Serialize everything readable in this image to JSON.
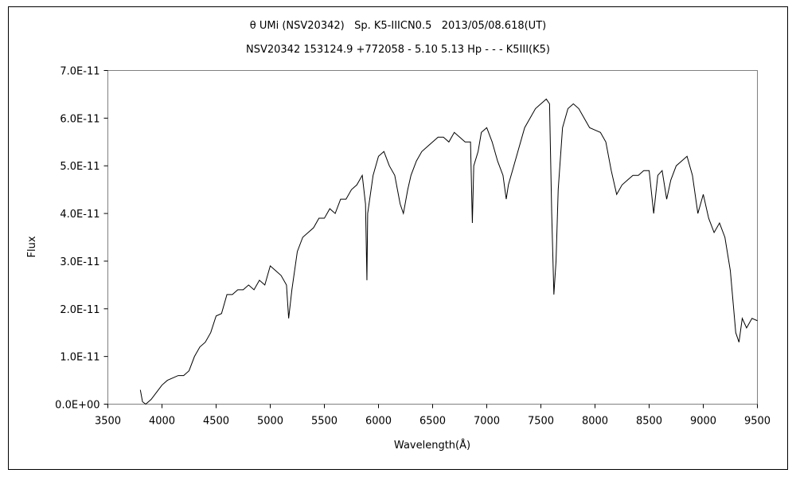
{
  "chart_data": {
    "type": "line",
    "title": "θ UMi (NSV20342)   Sp. K5-IIICN0.5   2013/05/08.618(UT)",
    "subtitle": "NSV20342 153124.9 +772058 - 5.10 5.13 Hp - - - K5III(K5)",
    "x_label": "Wavelength(Å)",
    "y_label": "Flux",
    "xlim": [
      3500,
      9500
    ],
    "xticks": [
      3500,
      4000,
      4500,
      5000,
      5500,
      6000,
      6500,
      7000,
      7500,
      8000,
      8500,
      9000,
      9500
    ],
    "ylim": [
      0,
      7e-11
    ],
    "yticks": [
      {
        "value": 0,
        "label": "0.0E+00"
      },
      {
        "value": 1e-11,
        "label": "1.0E-11"
      },
      {
        "value": 2e-11,
        "label": "2.0E-11"
      },
      {
        "value": 3e-11,
        "label": "3.0E-11"
      },
      {
        "value": 4e-11,
        "label": "4.0E-11"
      },
      {
        "value": 5e-11,
        "label": "5.0E-11"
      },
      {
        "value": 6e-11,
        "label": "6.0E-11"
      },
      {
        "value": 7e-11,
        "label": "7.0E-11"
      }
    ],
    "color": "#000000",
    "x": [
      3800,
      3820,
      3850,
      3900,
      3950,
      4000,
      4050,
      4100,
      4150,
      4200,
      4250,
      4300,
      4350,
      4400,
      4450,
      4500,
      4550,
      4600,
      4650,
      4700,
      4750,
      4800,
      4850,
      4900,
      4950,
      5000,
      5050,
      5100,
      5150,
      5170,
      5200,
      5250,
      5300,
      5350,
      5400,
      5450,
      5500,
      5550,
      5600,
      5650,
      5700,
      5750,
      5800,
      5850,
      5880,
      5893,
      5900,
      5950,
      6000,
      6050,
      6100,
      6150,
      6200,
      6230,
      6270,
      6300,
      6350,
      6400,
      6450,
      6500,
      6550,
      6600,
      6650,
      6700,
      6750,
      6800,
      6850,
      6867,
      6880,
      6920,
      6950,
      7000,
      7050,
      7100,
      7150,
      7180,
      7200,
      7250,
      7300,
      7350,
      7400,
      7450,
      7500,
      7550,
      7580,
      7600,
      7620,
      7640,
      7660,
      7700,
      7750,
      7800,
      7850,
      7900,
      7950,
      8000,
      8050,
      8100,
      8150,
      8200,
      8250,
      8300,
      8350,
      8400,
      8450,
      8500,
      8542,
      8580,
      8620,
      8662,
      8700,
      8750,
      8800,
      8850,
      8900,
      8950,
      9000,
      9050,
      9100,
      9150,
      9200,
      9250,
      9300,
      9330,
      9360,
      9400,
      9450,
      9500
    ],
    "values": [
      3e-12,
      5e-13,
      0,
      1e-12,
      2.5e-12,
      4e-12,
      5e-12,
      5.5e-12,
      6e-12,
      6e-12,
      7e-12,
      1e-11,
      1.2e-11,
      1.3e-11,
      1.5e-11,
      1.85e-11,
      1.9e-11,
      2.3e-11,
      2.3e-11,
      2.4e-11,
      2.4e-11,
      2.5e-11,
      2.4e-11,
      2.6e-11,
      2.5e-11,
      2.9e-11,
      2.8e-11,
      2.7e-11,
      2.5e-11,
      1.8e-11,
      2.4e-11,
      3.2e-11,
      3.5e-11,
      3.6e-11,
      3.7e-11,
      3.9e-11,
      3.9e-11,
      4.1e-11,
      4e-11,
      4.3e-11,
      4.3e-11,
      4.5e-11,
      4.6e-11,
      4.8e-11,
      4.2e-11,
      2.6e-11,
      4e-11,
      4.8e-11,
      5.2e-11,
      5.3e-11,
      5e-11,
      4.8e-11,
      4.2e-11,
      4e-11,
      4.5e-11,
      4.8e-11,
      5.1e-11,
      5.3e-11,
      5.4e-11,
      5.5e-11,
      5.6e-11,
      5.6e-11,
      5.5e-11,
      5.7e-11,
      5.6e-11,
      5.5e-11,
      5.5e-11,
      3.8e-11,
      5e-11,
      5.3e-11,
      5.7e-11,
      5.8e-11,
      5.5e-11,
      5.1e-11,
      4.8e-11,
      4.3e-11,
      4.6e-11,
      5e-11,
      5.4e-11,
      5.8e-11,
      6e-11,
      6.2e-11,
      6.3e-11,
      6.4e-11,
      6.3e-11,
      4e-11,
      2.3e-11,
      3e-11,
      4.5e-11,
      5.8e-11,
      6.2e-11,
      6.3e-11,
      6.2e-11,
      6e-11,
      5.8e-11,
      5.75e-11,
      5.7e-11,
      5.5e-11,
      4.9e-11,
      4.4e-11,
      4.6e-11,
      4.7e-11,
      4.8e-11,
      4.8e-11,
      4.9e-11,
      4.9e-11,
      4e-11,
      4.8e-11,
      4.9e-11,
      4.3e-11,
      4.7e-11,
      5e-11,
      5.1e-11,
      5.2e-11,
      4.8e-11,
      4e-11,
      4.4e-11,
      3.9e-11,
      3.6e-11,
      3.8e-11,
      3.5e-11,
      2.8e-11,
      1.5e-11,
      1.3e-11,
      1.8e-11,
      1.6e-11,
      1.8e-11,
      1.75e-11
    ]
  }
}
